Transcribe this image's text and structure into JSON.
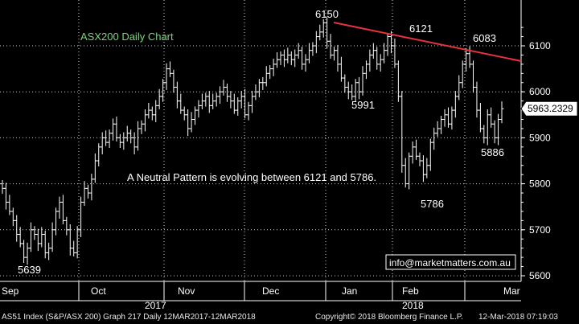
{
  "chart_data": {
    "type": "ohlc",
    "title": "ASX200 Daily Chart",
    "annotation": "A Neutral Pattern is evolving between 6121 and 5786.",
    "watermark": "info@marketmatters.com.au",
    "last_price_label": "5963.2329",
    "ylim": [
      5600,
      6175
    ],
    "y_ticks": [
      5600,
      5700,
      5800,
      5900,
      6000,
      6100
    ],
    "x_month_labels": [
      "Sep",
      "Oct",
      "Nov",
      "Dec",
      "Jan",
      "Feb",
      "Mar"
    ],
    "x_year_labels": [
      "2017",
      "2018"
    ],
    "level_labels": [
      "6150",
      "6121",
      "6083",
      "5991",
      "5886",
      "5786",
      "5639"
    ],
    "trendline": {
      "from": [
        "2017-12-21",
        6150
      ],
      "to": [
        "2018-03-12",
        6065
      ]
    },
    "colors": {
      "bars": "#ffffff",
      "trendline": "#e8323e",
      "title": "#7fd27f",
      "annotation": "#ffffff",
      "grid": "#ffffff"
    },
    "close": [
      5790,
      5760,
      5740,
      5720,
      5690,
      5670,
      5640,
      5660,
      5700,
      5690,
      5670,
      5690,
      5650,
      5660,
      5700,
      5740,
      5760,
      5720,
      5700,
      5660,
      5650,
      5700,
      5760,
      5790,
      5780,
      5810,
      5850,
      5880,
      5900,
      5890,
      5910,
      5930,
      5900,
      5890,
      5900,
      5910,
      5900,
      5880,
      5920,
      5930,
      5950,
      5960,
      5950,
      5970,
      5990,
      6020,
      6050,
      6040,
      6010,
      5980,
      5960,
      5950,
      5920,
      5940,
      5960,
      5970,
      5980,
      5990,
      5970,
      5980,
      5990,
      6000,
      6010,
      5990,
      5980,
      5960,
      5980,
      5990,
      5950,
      5970,
      5990,
      6000,
      6020,
      6020,
      6040,
      6050,
      6060,
      6070,
      6080,
      6070,
      6080,
      6070,
      6080,
      6090,
      6060,
      6070,
      6090,
      6100,
      6120,
      6130,
      6150,
      6110,
      6080,
      6090,
      6060,
      6030,
      6010,
      6000,
      5990,
      6020,
      6000,
      6040,
      6060,
      6080,
      6090,
      6060,
      6070,
      6090,
      6120,
      6100,
      6060,
      5990,
      5840,
      5800,
      5860,
      5880,
      5860,
      5850,
      5820,
      5840,
      5890,
      5910,
      5920,
      5940,
      5950,
      5930,
      5960,
      5990,
      6020,
      6060,
      6083,
      6060,
      6010,
      5960,
      5920,
      5900,
      5950,
      5930,
      5900,
      5940,
      5963.2329
    ]
  },
  "footer": {
    "left": "AS51 Index (S&P/ASX 200) Graph 217  Daily 12MAR2017-12MAR2018",
    "copyright": "Copyright© 2018 Bloomberg Finance L.P.",
    "timestamp": "12-Mar-2018 07:19:03"
  }
}
